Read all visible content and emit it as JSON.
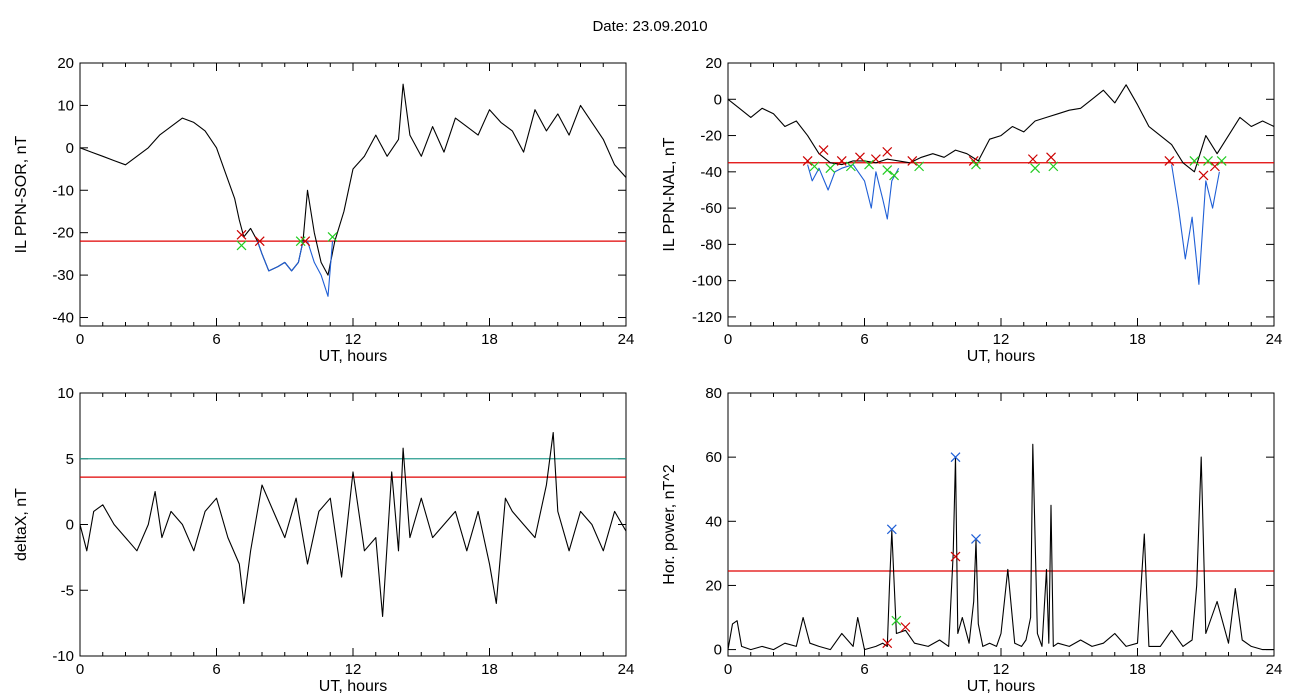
{
  "page": {
    "title": "Date:  23.09.2010"
  },
  "chart_data": [
    {
      "type": "line",
      "id": "il-ppn-sor",
      "xlabel": "UT, hours",
      "ylabel": "IL PPN-SOR, nT",
      "xlim": [
        0,
        24
      ],
      "ylim": [
        -42,
        20
      ],
      "xticks": [
        0,
        6,
        12,
        18,
        24
      ],
      "yticks": [
        -40,
        -30,
        -20,
        -10,
        0,
        10,
        20
      ],
      "threshold": {
        "value": -22,
        "color": "#e00000"
      },
      "series": [
        {
          "color": "#000000",
          "x": [
            0,
            0.5,
            1,
            1.5,
            2,
            2.5,
            3,
            3.5,
            4,
            4.5,
            5,
            5.5,
            6,
            6.4,
            6.8,
            7.0,
            7.2,
            7.5,
            7.8,
            8.0,
            8.3,
            8.7,
            9.0,
            9.3,
            9.6,
            9.8,
            10.0,
            10.3,
            10.6,
            10.9,
            11.2,
            11.6,
            12.0,
            12.5,
            13.0,
            13.5,
            14.0,
            14.2,
            14.5,
            15.0,
            15.5,
            16.0,
            16.5,
            17.0,
            17.5,
            18.0,
            18.5,
            19.0,
            19.5,
            20.0,
            20.5,
            21.0,
            21.5,
            22.0,
            22.5,
            23.0,
            23.5,
            24.0
          ],
          "y": [
            0,
            -1,
            -2,
            -3,
            -4,
            -2,
            0,
            3,
            5,
            7,
            6,
            4,
            0,
            -6,
            -12,
            -17,
            -21,
            -19,
            -22,
            -25,
            -29,
            -28,
            -27,
            -29,
            -27,
            -22,
            -10,
            -20,
            -27,
            -30,
            -22,
            -15,
            -5,
            -2,
            3,
            -2,
            2,
            15,
            3,
            -2,
            5,
            -1,
            7,
            5,
            3,
            9,
            6,
            4,
            -1,
            9,
            4,
            8,
            3,
            10,
            6,
            2,
            -4,
            -7
          ]
        },
        {
          "color": "#1f5fd6",
          "x": [
            7.8,
            8.0,
            8.3,
            8.7,
            9.0,
            9.3,
            9.6,
            9.8
          ],
          "y": [
            -22,
            -25,
            -29,
            -28,
            -27,
            -29,
            -27,
            -22
          ]
        },
        {
          "color": "#1f5fd6",
          "x": [
            10.0,
            10.3,
            10.6,
            10.9,
            11.1
          ],
          "y": [
            -22,
            -27,
            -30,
            -35,
            -22
          ]
        }
      ],
      "markers": [
        {
          "color": "#cc0000",
          "x": [
            7.1,
            7.9,
            9.9
          ],
          "y": [
            -20.5,
            -22,
            -22
          ]
        },
        {
          "color": "#22cc22",
          "x": [
            7.1,
            9.7,
            11.1
          ],
          "y": [
            -23,
            -22,
            -21
          ]
        }
      ]
    },
    {
      "type": "line",
      "id": "il-ppn-nal",
      "xlabel": "UT, hours",
      "ylabel": "IL PPN-NAL, nT",
      "xlim": [
        0,
        24
      ],
      "ylim": [
        -125,
        20
      ],
      "xticks": [
        0,
        6,
        12,
        18,
        24
      ],
      "yticks": [
        -120,
        -100,
        -80,
        -60,
        -40,
        -20,
        0,
        20
      ],
      "threshold": {
        "value": -35,
        "color": "#e00000"
      },
      "series": [
        {
          "color": "#000000",
          "x": [
            0,
            0.5,
            1,
            1.5,
            2,
            2.5,
            3,
            3.5,
            4,
            4.5,
            5,
            5.5,
            6,
            6.5,
            7,
            7.5,
            8,
            8.5,
            9,
            9.5,
            10,
            10.5,
            11,
            11.5,
            12,
            12.5,
            13,
            13.5,
            14,
            14.5,
            15,
            15.5,
            16,
            16.5,
            17,
            17.5,
            18,
            18.5,
            19,
            19.5,
            20,
            20.5,
            21,
            21.5,
            22,
            22.5,
            23,
            23.5,
            24
          ],
          "y": [
            0,
            -5,
            -10,
            -5,
            -8,
            -15,
            -12,
            -20,
            -30,
            -35,
            -36,
            -34,
            -34,
            -35,
            -33,
            -34,
            -35,
            -32,
            -30,
            -32,
            -28,
            -30,
            -34,
            -22,
            -20,
            -15,
            -18,
            -12,
            -10,
            -8,
            -6,
            -5,
            0,
            5,
            -2,
            8,
            -3,
            -15,
            -20,
            -25,
            -35,
            -40,
            -20,
            -30,
            -20,
            -10,
            -15,
            -12,
            -15
          ]
        },
        {
          "color": "#1f5fd6",
          "x": [
            3.5,
            3.7,
            4.0,
            4.4,
            4.7,
            5.0,
            5.5,
            6.0,
            6.3,
            6.5,
            6.8,
            7.0,
            7.2,
            7.5
          ],
          "y": [
            -36,
            -45,
            -38,
            -50,
            -40,
            -38,
            -36,
            -45,
            -60,
            -40,
            -55,
            -66,
            -45,
            -38
          ]
        },
        {
          "color": "#1f5fd6",
          "x": [
            19.5,
            19.8,
            20.1,
            20.4,
            20.7,
            21.0,
            21.3,
            21.6
          ],
          "y": [
            -36,
            -60,
            -88,
            -65,
            -102,
            -45,
            -60,
            -40
          ]
        }
      ],
      "markers": [
        {
          "color": "#cc0000",
          "x": [
            3.5,
            4.2,
            5.0,
            5.8,
            6.5,
            7.0,
            8.1,
            10.8,
            13.4,
            14.2,
            19.4,
            20.9,
            21.4
          ],
          "y": [
            -34,
            -28,
            -34,
            -32,
            -33,
            -29,
            -34,
            -34,
            -33,
            -32,
            -34,
            -42,
            -37
          ]
        },
        {
          "color": "#22cc22",
          "x": [
            3.8,
            4.5,
            5.4,
            6.2,
            7.0,
            7.3,
            8.4,
            10.9,
            13.5,
            14.3,
            20.5,
            21.1,
            21.7
          ],
          "y": [
            -37,
            -38,
            -37,
            -36,
            -39,
            -42,
            -37,
            -36,
            -38,
            -37,
            -34,
            -34,
            -34
          ]
        }
      ]
    },
    {
      "type": "line",
      "id": "deltax",
      "xlabel": "UT, hours",
      "ylabel": "deltaX, nT",
      "xlim": [
        0,
        24
      ],
      "ylim": [
        -10,
        10
      ],
      "xticks": [
        0,
        6,
        12,
        18,
        24
      ],
      "yticks": [
        -10,
        -5,
        0,
        5,
        10
      ],
      "thresholds": [
        {
          "value": 5,
          "color": "#2a9d8f"
        },
        {
          "value": 3.6,
          "color": "#e00000"
        }
      ],
      "series": [
        {
          "color": "#000000",
          "x": [
            0,
            0.3,
            0.6,
            1,
            1.5,
            2,
            2.5,
            3,
            3.3,
            3.6,
            4,
            4.5,
            5,
            5.5,
            6,
            6.5,
            7,
            7.2,
            7.5,
            8,
            8.5,
            9,
            9.5,
            10,
            10.5,
            11,
            11.5,
            12,
            12.5,
            13,
            13.3,
            13.7,
            14,
            14.2,
            14.5,
            15,
            15.5,
            16,
            16.5,
            17,
            17.5,
            18,
            18.3,
            18.7,
            19,
            19.5,
            20,
            20.5,
            20.8,
            21,
            21.5,
            22,
            22.5,
            23,
            23.5,
            24
          ],
          "y": [
            0,
            -2,
            1,
            1.5,
            0,
            -1,
            -2,
            0,
            2.5,
            -1,
            1,
            0,
            -2,
            1,
            2,
            -1,
            -3,
            -6,
            -2,
            3,
            1,
            -1,
            2,
            -3,
            1,
            2,
            -4,
            4,
            -2,
            -1,
            -7,
            4,
            -2,
            5.8,
            -1,
            2,
            -1,
            0,
            1,
            -2,
            1,
            -3,
            -6,
            2,
            1,
            0,
            -1,
            3,
            7,
            1,
            -2,
            1,
            0,
            -2,
            1,
            -0.5
          ]
        }
      ]
    },
    {
      "type": "line",
      "id": "hor-power",
      "xlabel": "UT, hours",
      "ylabel": "Hor. power, nT^2",
      "xlim": [
        0,
        24
      ],
      "ylim": [
        -2,
        80
      ],
      "xticks": [
        0,
        6,
        12,
        18,
        24
      ],
      "yticks": [
        0,
        20,
        40,
        60,
        80
      ],
      "threshold": {
        "value": 24.5,
        "color": "#e00000"
      },
      "series": [
        {
          "color": "#000000",
          "x": [
            0,
            0.2,
            0.4,
            0.6,
            1,
            1.5,
            2,
            2.5,
            3,
            3.3,
            3.6,
            4,
            4.5,
            5,
            5.5,
            5.7,
            6,
            6.5,
            6.8,
            7.0,
            7.1,
            7.2,
            7.4,
            7.8,
            8.2,
            8.8,
            9.3,
            9.7,
            9.9,
            10.0,
            10.1,
            10.3,
            10.6,
            10.8,
            10.9,
            11.0,
            11.2,
            11.5,
            11.8,
            12.0,
            12.3,
            12.6,
            12.9,
            13.1,
            13.3,
            13.4,
            13.6,
            13.8,
            14.0,
            14.1,
            14.2,
            14.3,
            14.5,
            15,
            15.5,
            16,
            16.5,
            17,
            17.5,
            18.0,
            18.3,
            18.5,
            19,
            19.5,
            20,
            20.4,
            20.6,
            20.8,
            21,
            21.5,
            22,
            22.3,
            22.6,
            23,
            23.5,
            24
          ],
          "y": [
            0,
            8,
            9,
            1,
            0,
            1,
            0,
            2,
            1,
            10,
            2,
            1,
            0,
            5,
            1,
            10,
            0,
            1,
            2,
            1,
            20,
            37,
            5,
            6,
            2,
            1,
            3,
            1,
            30,
            60,
            5,
            10,
            2,
            15,
            34,
            8,
            1,
            2,
            1,
            5,
            25,
            2,
            1,
            3,
            10,
            64,
            5,
            1,
            25,
            2,
            45,
            1,
            2,
            1,
            3,
            1,
            2,
            5,
            1,
            2,
            36,
            1,
            1,
            6,
            1,
            3,
            20,
            60,
            5,
            15,
            2,
            19,
            3,
            1,
            0,
            0
          ]
        }
      ],
      "markers": [
        {
          "color": "#1f5fd6",
          "x": [
            7.2,
            10.0,
            10.9
          ],
          "y": [
            37.5,
            60,
            34.5
          ]
        },
        {
          "color": "#cc0000",
          "x": [
            7.0,
            10.0,
            7.8
          ],
          "y": [
            2,
            29,
            7
          ]
        },
        {
          "color": "#22cc22",
          "x": [
            7.4
          ],
          "y": [
            9
          ]
        }
      ]
    }
  ]
}
